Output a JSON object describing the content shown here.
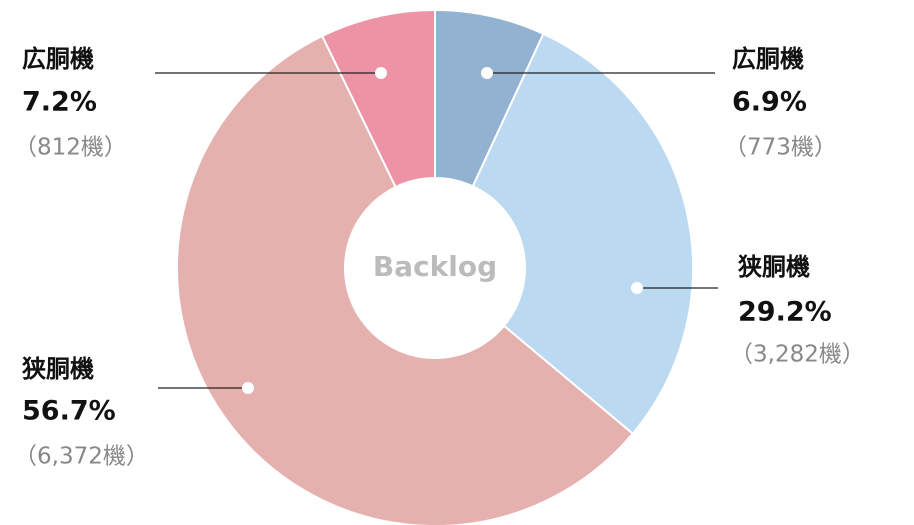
{
  "chart_data": {
    "type": "pie",
    "donut": true,
    "center_label": "Backlog",
    "categories": [
      "広胴機",
      "狭胴機",
      "狭胴機",
      "広胴機"
    ],
    "values": [
      6.9,
      29.2,
      56.7,
      7.2
    ],
    "value_labels": [
      "6.9%",
      "29.2%",
      "56.7%",
      "7.2%"
    ],
    "counts": [
      773,
      3282,
      6372,
      812
    ],
    "count_labels": [
      "（773機）",
      "（3,282機）",
      "（6,372機）",
      "（812機）"
    ],
    "colors": [
      "#93b1d1",
      "#bcd9f2",
      "#e5b1ae",
      "#ee93a5"
    ]
  }
}
